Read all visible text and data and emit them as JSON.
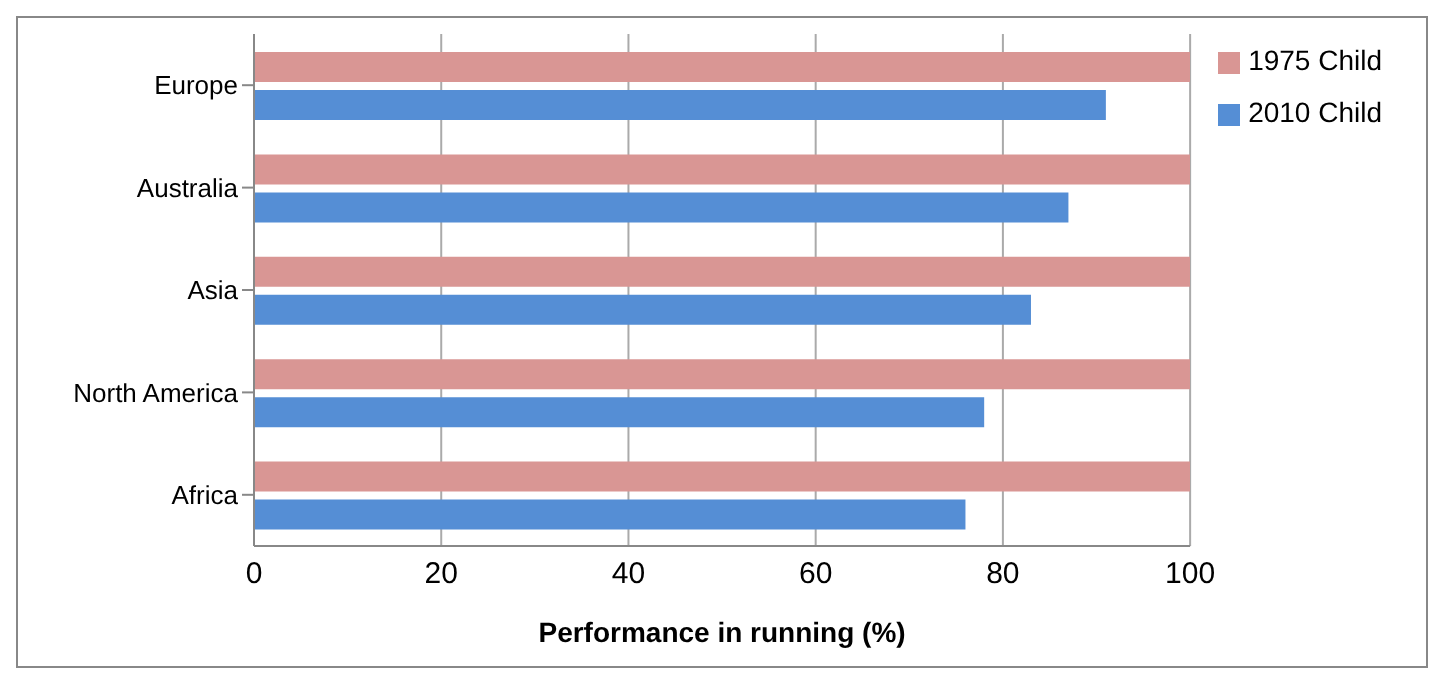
{
  "chart_data": {
    "type": "bar",
    "orientation": "horizontal",
    "xlabel": "Performance in running (%)",
    "categories": [
      "Europe",
      "Australia",
      "Asia",
      "North America",
      "Africa"
    ],
    "series": [
      {
        "name": "1975 Child",
        "color": "#d99694",
        "values": [
          100,
          100,
          100,
          100,
          100
        ]
      },
      {
        "name": "2010 Child",
        "color": "#558ed5",
        "values": [
          91,
          87,
          83,
          78,
          76
        ]
      }
    ],
    "xlim": [
      0,
      100
    ],
    "xticks": [
      0,
      20,
      40,
      60,
      80,
      100
    ],
    "grid": "x",
    "legend": "top right"
  }
}
